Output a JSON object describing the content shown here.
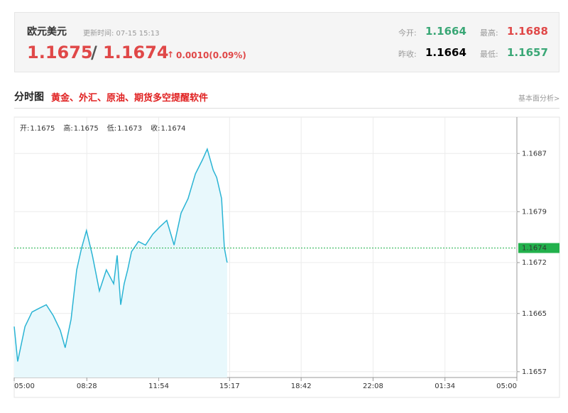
{
  "header": {
    "title": "欧元美元",
    "updated": "更新时间: 07-15 15:13",
    "bid": 1.1675,
    "separator": "/",
    "ask": 1.1674,
    "change": "0.0010(0.09%)",
    "stats": [
      {
        "label": "今开:",
        "value": 1.1664
      },
      {
        "label": "最高:",
        "value": 1.1688
      },
      {
        "label": "昨收:",
        "value": 1.1664
      },
      {
        "label": "最低:",
        "value": 1.1657
      }
    ]
  },
  "section": {
    "title": "分时图",
    "promo": "黄金、外汇、原油、期货多空提醒软件",
    "link": "基本面分析>"
  },
  "chart_data": {
    "type": "line",
    "ohlc": [
      {
        "label": "开:",
        "value": 1.1675
      },
      {
        "label": "高:",
        "value": 1.1675
      },
      {
        "label": "低:",
        "value": 1.1673
      },
      {
        "label": "收:",
        "value": 1.1674
      }
    ],
    "x": [
      "05:00",
      "05:10",
      "05:31",
      "05:51",
      "06:11",
      "06:32",
      "06:52",
      "07:12",
      "07:26",
      "07:43",
      "07:59",
      "08:13",
      "08:27",
      "08:44",
      "09:04",
      "09:24",
      "09:45",
      "09:55",
      "10:05",
      "10:15",
      "10:25",
      "10:36",
      "10:56",
      "11:16",
      "11:37",
      "11:57",
      "12:17",
      "12:38",
      "12:58",
      "13:18",
      "13:39",
      "13:59",
      "14:13",
      "14:30",
      "14:40",
      "14:54",
      "15:02",
      "15:10"
    ],
    "series": [
      {
        "color": "#2ab4d4",
        "values": [
          1.16632,
          1.16584,
          1.16632,
          1.16652,
          1.16657,
          1.16662,
          1.16647,
          1.16627,
          1.16603,
          1.16642,
          1.1671,
          1.1674,
          1.16764,
          1.1673,
          1.16681,
          1.1671,
          1.16691,
          1.1673,
          1.16662,
          1.16691,
          1.1671,
          1.16735,
          1.16749,
          1.16744,
          1.16759,
          1.16769,
          1.16778,
          1.16744,
          1.16788,
          1.16808,
          1.16842,
          1.16861,
          1.16876,
          1.16847,
          1.16837,
          1.16808,
          1.1674,
          1.1672
        ]
      }
    ],
    "last": 1.1674,
    "last_color": "#22b14c",
    "xlim": [
      "05:00",
      "05:00"
    ],
    "xticks": [
      "05:00",
      "08:28",
      "11:54",
      "15:17",
      "18:42",
      "22:08",
      "01:34",
      "05:00"
    ],
    "ylim": [
      1.16562,
      1.1692
    ],
    "yticks": [
      1.1657,
      1.1665,
      1.1672,
      1.1679,
      1.1687
    ],
    "grid": true
  }
}
